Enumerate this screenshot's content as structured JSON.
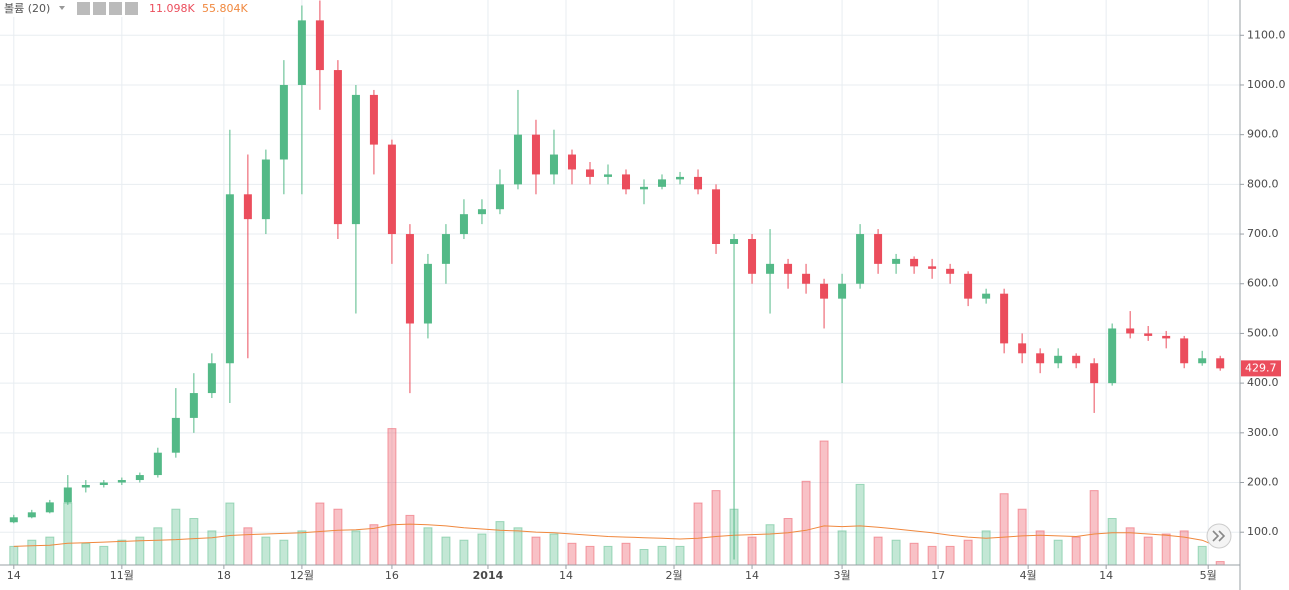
{
  "chart_data": {
    "type": "candlestick",
    "legend_title": "볼륨 (20)",
    "volume_value_label": "11.098K",
    "volume_ma_value_label": "55.804K",
    "x": [
      0,
      3,
      6,
      9,
      12,
      15,
      18,
      21,
      24,
      27,
      30,
      33,
      36,
      39,
      42,
      45,
      48,
      51,
      54,
      57,
      60,
      63,
      66,
      69,
      72,
      75,
      78,
      81,
      84,
      87,
      90,
      93,
      96,
      99,
      102,
      105,
      108,
      111,
      114,
      117,
      120,
      123,
      126,
      129,
      132,
      135,
      138,
      141,
      144,
      147,
      150,
      153,
      156,
      159,
      162,
      165,
      168,
      171,
      174,
      177,
      180,
      183,
      186,
      189,
      192,
      195,
      198,
      201
    ],
    "open": [
      120,
      130,
      140,
      160,
      190,
      195,
      200,
      205,
      215,
      260,
      330,
      380,
      440,
      780,
      730,
      850,
      1000,
      1130,
      1030,
      720,
      980,
      880,
      700,
      520,
      640,
      700,
      740,
      750,
      800,
      900,
      820,
      860,
      830,
      815,
      820,
      790,
      795,
      810,
      815,
      790,
      680,
      690,
      620,
      640,
      620,
      600,
      570,
      600,
      700,
      640,
      650,
      635,
      630,
      620,
      570,
      580,
      480,
      460,
      440,
      455,
      440,
      400,
      510,
      500,
      495,
      490,
      440,
      450
    ],
    "close": [
      130,
      140,
      160,
      190,
      195,
      200,
      205,
      215,
      260,
      330,
      380,
      440,
      780,
      730,
      850,
      1000,
      1130,
      1030,
      720,
      980,
      880,
      700,
      520,
      640,
      700,
      740,
      750,
      800,
      900,
      820,
      860,
      830,
      815,
      820,
      790,
      795,
      810,
      815,
      790,
      680,
      690,
      620,
      640,
      620,
      600,
      570,
      600,
      700,
      640,
      650,
      635,
      630,
      620,
      570,
      580,
      480,
      460,
      440,
      455,
      440,
      400,
      510,
      500,
      495,
      490,
      440,
      450,
      429.7
    ],
    "high": [
      135,
      145,
      165,
      215,
      205,
      205,
      210,
      220,
      270,
      390,
      420,
      460,
      910,
      860,
      870,
      1050,
      1160,
      1170,
      1050,
      1000,
      990,
      890,
      720,
      660,
      720,
      770,
      770,
      830,
      990,
      930,
      910,
      870,
      845,
      840,
      830,
      810,
      820,
      825,
      830,
      800,
      700,
      700,
      710,
      650,
      640,
      610,
      620,
      720,
      710,
      660,
      655,
      650,
      640,
      625,
      590,
      590,
      500,
      470,
      470,
      460,
      450,
      520,
      545,
      515,
      505,
      495,
      465,
      455
    ],
    "low": [
      118,
      128,
      138,
      155,
      180,
      190,
      195,
      200,
      210,
      250,
      300,
      370,
      360,
      450,
      700,
      780,
      780,
      950,
      690,
      540,
      820,
      640,
      380,
      490,
      600,
      690,
      720,
      740,
      790,
      780,
      800,
      800,
      800,
      800,
      780,
      760,
      790,
      800,
      780,
      660,
      45,
      600,
      540,
      590,
      580,
      510,
      400,
      590,
      620,
      620,
      620,
      610,
      600,
      555,
      560,
      460,
      440,
      420,
      430,
      430,
      340,
      395,
      490,
      485,
      470,
      430,
      435,
      425
    ],
    "volume": [
      60000,
      80000,
      90000,
      200000,
      70000,
      60000,
      80000,
      90000,
      120000,
      180000,
      150000,
      110000,
      200000,
      120000,
      90000,
      80000,
      110000,
      200000,
      180000,
      110000,
      130000,
      440000,
      160000,
      120000,
      90000,
      80000,
      100000,
      140000,
      120000,
      90000,
      100000,
      70000,
      60000,
      60000,
      70000,
      50000,
      60000,
      60000,
      200000,
      240000,
      180000,
      90000,
      130000,
      150000,
      270000,
      400000,
      110000,
      260000,
      90000,
      80000,
      70000,
      60000,
      60000,
      80000,
      110000,
      230000,
      180000,
      110000,
      80000,
      90000,
      240000,
      150000,
      120000,
      90000,
      100000,
      110000,
      60000,
      11098
    ],
    "volume_ma": [
      60000,
      62000,
      64000,
      70000,
      72000,
      74000,
      76000,
      78000,
      80000,
      82000,
      85000,
      88000,
      95000,
      98000,
      100000,
      102000,
      104000,
      108000,
      112000,
      114000,
      118000,
      130000,
      132000,
      130000,
      126000,
      120000,
      116000,
      112000,
      110000,
      106000,
      104000,
      100000,
      96000,
      92000,
      90000,
      88000,
      86000,
      84000,
      86000,
      92000,
      96000,
      98000,
      100000,
      104000,
      112000,
      126000,
      124000,
      126000,
      122000,
      116000,
      110000,
      104000,
      96000,
      90000,
      86000,
      90000,
      94000,
      96000,
      94000,
      92000,
      100000,
      104000,
      104000,
      100000,
      96000,
      90000,
      80000,
      55804
    ],
    "up_color": "#53b987",
    "down_color": "#eb4d5c",
    "ma_color": "#f0883e",
    "xlim": [
      -2.3,
      204.3
    ],
    "ylim": [
      34,
      1171
    ],
    "volume_lim": [
      0,
      500000
    ],
    "grid": true,
    "yticks": [
      {
        "value": 100,
        "label": "100.0"
      },
      {
        "value": 200,
        "label": "200.0"
      },
      {
        "value": 300,
        "label": "300.0"
      },
      {
        "value": 400,
        "label": "400.0"
      },
      {
        "value": 500,
        "label": "500.0"
      },
      {
        "value": 600,
        "label": "600.0"
      },
      {
        "value": 700,
        "label": "700.0"
      },
      {
        "value": 800,
        "label": "800.0"
      },
      {
        "value": 900,
        "label": "900.0"
      },
      {
        "value": 1000,
        "label": "1000.0"
      },
      {
        "value": 1100,
        "label": "1100.0"
      }
    ],
    "xticks": [
      {
        "value": 0,
        "label": "14"
      },
      {
        "value": 18,
        "label": "11월"
      },
      {
        "value": 35,
        "label": "18"
      },
      {
        "value": 48,
        "label": "12월"
      },
      {
        "value": 63,
        "label": "16"
      },
      {
        "value": 79,
        "label": "2014"
      },
      {
        "value": 92,
        "label": "14"
      },
      {
        "value": 110,
        "label": "2월"
      },
      {
        "value": 123,
        "label": "14"
      },
      {
        "value": 138,
        "label": "3월"
      },
      {
        "value": 154,
        "label": "17"
      },
      {
        "value": 169,
        "label": "4월"
      },
      {
        "value": 182,
        "label": "14"
      },
      {
        "value": 199,
        "label": "5월"
      }
    ]
  }
}
